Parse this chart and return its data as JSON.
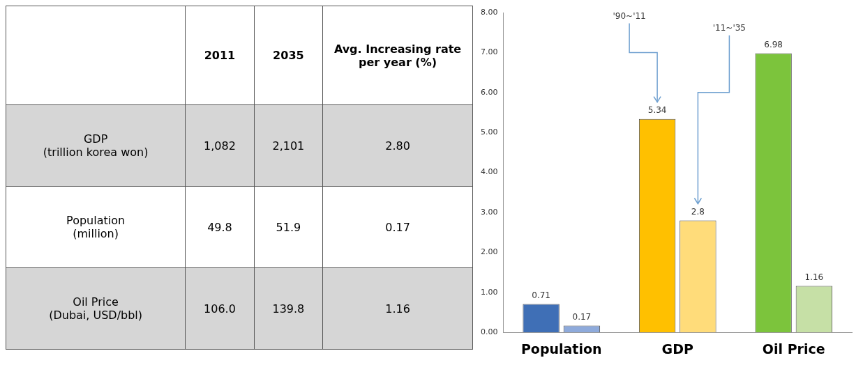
{
  "chart_data": [
    {
      "type": "other",
      "categories": [
        null,
        "2011",
        "2035",
        "Avg. Increasing rate per year (%)"
      ],
      "y_categories": [
        "GDP\n(trillion korea won)",
        "Population\n(million)",
        "Oil Price\n(Dubai, USD/bbl)"
      ],
      "cell_labels": [
        [
          "1,082",
          "2,101",
          "2.80"
        ],
        [
          "49.8",
          "51.9",
          "0.17"
        ],
        [
          "106.0",
          "139.8",
          "1.16"
        ]
      ]
    },
    {
      "type": "bar",
      "categories": [
        "Population",
        "GDP",
        "Oil Price"
      ],
      "series": [
        {
          "colors": [
            "#3f6fb6",
            "#ffc000",
            "#7cc43c"
          ],
          "values": [
            0.71,
            5.34,
            6.98
          ]
        },
        {
          "colors": [
            "#8eaadb",
            "#ffdc7a",
            "#c6e0a6"
          ],
          "values": [
            0.17,
            2.8,
            1.16
          ]
        }
      ],
      "ylim": [
        0,
        8
      ],
      "yticks": [
        {
          "value": 0,
          "label": "0.00"
        },
        {
          "value": 1,
          "label": "1.00"
        },
        {
          "value": 2,
          "label": "2.00"
        },
        {
          "value": 3,
          "label": "3.00"
        },
        {
          "value": 4,
          "label": "4.00"
        },
        {
          "value": 5,
          "label": "5.00"
        },
        {
          "value": 6,
          "label": "6.00"
        },
        {
          "value": 7,
          "label": "7.00"
        },
        {
          "value": 8,
          "label": "8.00"
        }
      ],
      "data_labels": true,
      "grid": false,
      "legend": false,
      "annotations": [
        "'90~'11",
        "'11~'35"
      ]
    }
  ]
}
